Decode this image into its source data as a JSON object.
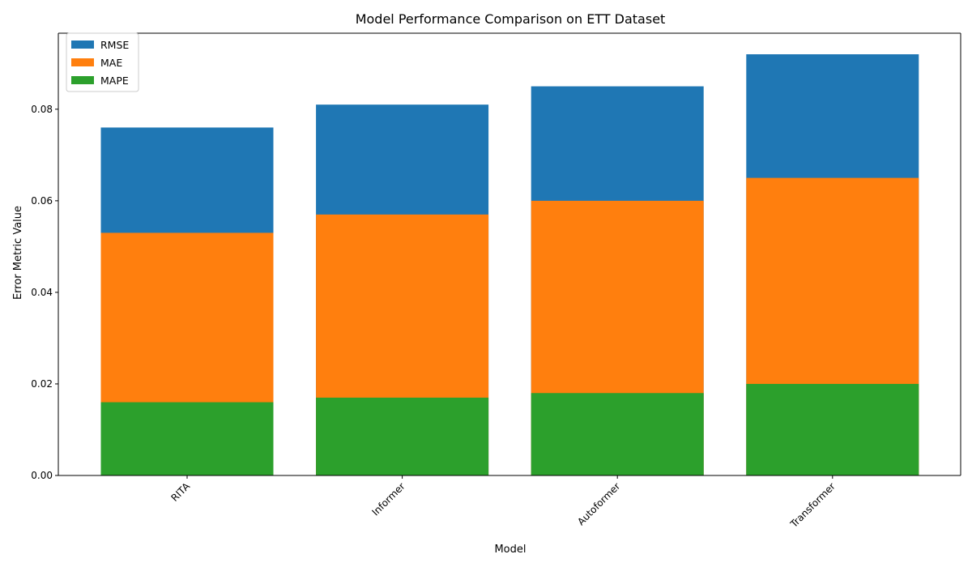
{
  "chart_data": {
    "type": "bar",
    "stacked": false,
    "overlapping": true,
    "title": "Model Performance Comparison on ETT Dataset",
    "xlabel": "Model",
    "ylabel": "Error Metric Value",
    "categories": [
      "RITA",
      "Informer",
      "Autoformer",
      "Transformer"
    ],
    "series": [
      {
        "name": "RMSE",
        "color": "#1f77b4",
        "values": [
          0.076,
          0.081,
          0.085,
          0.092
        ]
      },
      {
        "name": "MAE",
        "color": "#ff7f0e",
        "values": [
          0.053,
          0.057,
          0.06,
          0.065
        ]
      },
      {
        "name": "MAPE",
        "color": "#2ca02c",
        "values": [
          0.016,
          0.017,
          0.018,
          0.02
        ]
      }
    ],
    "ylim": [
      0,
      0.0966
    ],
    "yticks": [
      0.0,
      0.02,
      0.04,
      0.06,
      0.08
    ],
    "ytick_labels": [
      "0.00",
      "0.02",
      "0.04",
      "0.06",
      "0.08"
    ],
    "xtick_rotation": 45,
    "grid": false,
    "legend_position": "top-left"
  }
}
